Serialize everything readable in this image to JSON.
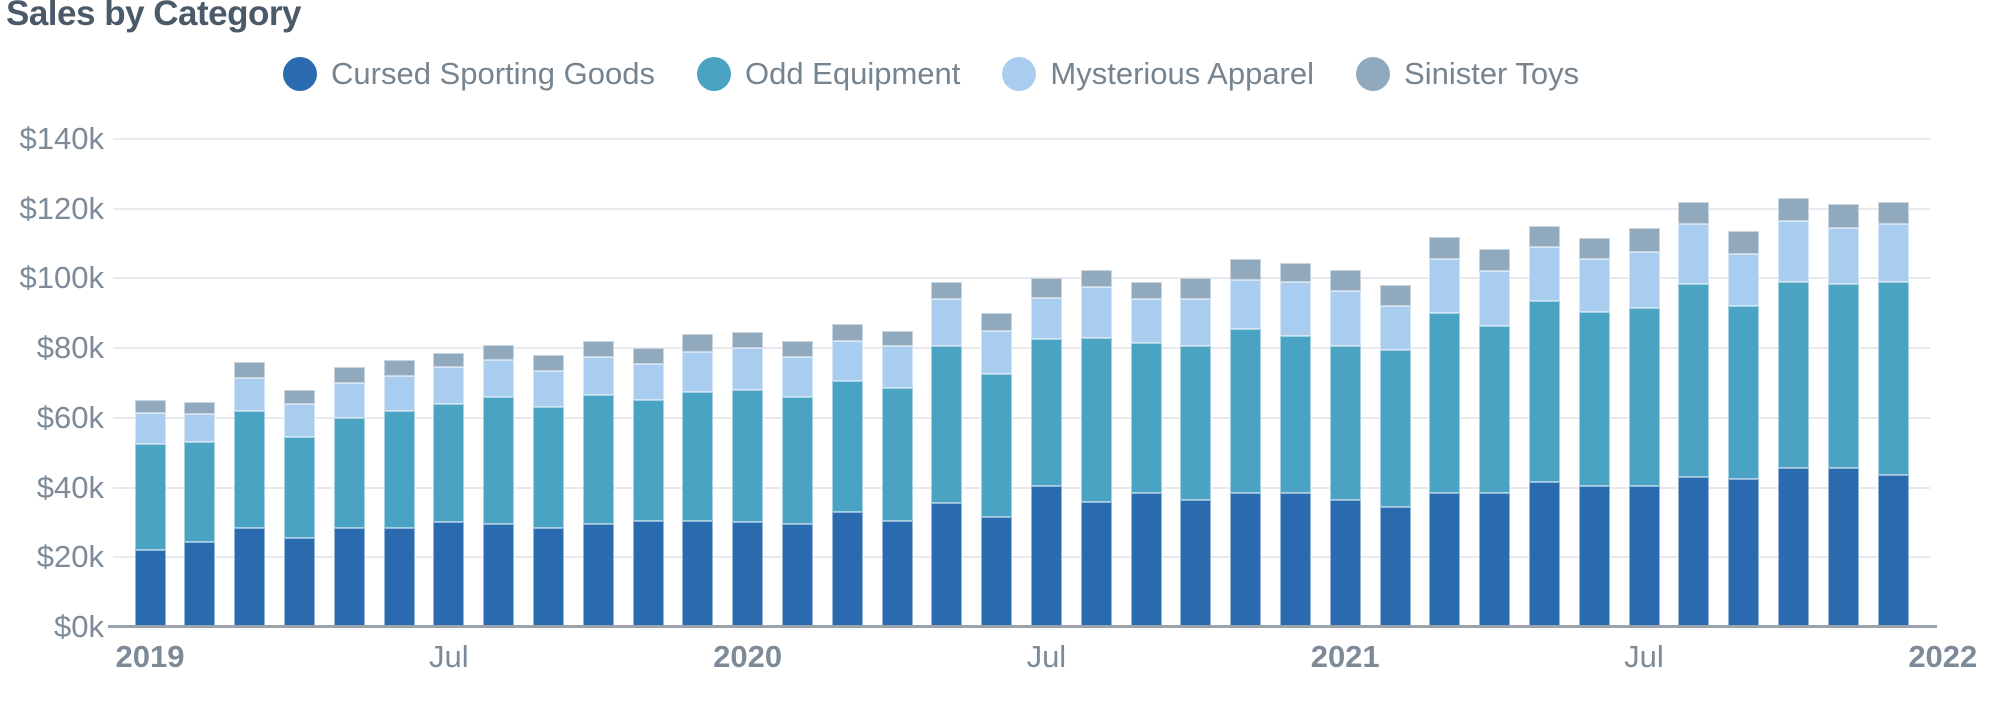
{
  "title": "Sales by Category",
  "colors": {
    "cursed_sporting_goods": "#2a6aae",
    "odd_equipment": "#4ba3c3",
    "mysterious_apparel": "#a8cdee",
    "sinister_toys": "#91a9bc",
    "title_text": "#4b5a69",
    "axis_text": "#7d8b99",
    "legend_text": "#76848f",
    "gridline": "#e9e9ee",
    "axis_line": "#9ba3ac"
  },
  "chart_data": {
    "type": "bar",
    "stacked": true,
    "title": "Sales by Category",
    "units": "USD thousands ($k)",
    "ylim": [
      0,
      140
    ],
    "grid": true,
    "legend_position": "top",
    "categories": [
      "Jan 2019",
      "Feb 2019",
      "Mar 2019",
      "Apr 2019",
      "May 2019",
      "Jun 2019",
      "Jul 2019",
      "Aug 2019",
      "Sep 2019",
      "Oct 2019",
      "Nov 2019",
      "Dec 2019",
      "Jan 2020",
      "Feb 2020",
      "Mar 2020",
      "Apr 2020",
      "May 2020",
      "Jun 2020",
      "Jul 2020",
      "Aug 2020",
      "Sep 2020",
      "Oct 2020",
      "Nov 2020",
      "Dec 2020",
      "Jan 2021",
      "Feb 2021",
      "Mar 2021",
      "Apr 2021",
      "May 2021",
      "Jun 2021",
      "Jul 2021",
      "Aug 2021",
      "Sep 2021",
      "Oct 2021",
      "Nov 2021",
      "Dec 2021"
    ],
    "series": [
      {
        "name": "Cursed Sporting Goods",
        "color": "#2a6aae",
        "values": [
          22,
          24.5,
          28.5,
          25.5,
          28.5,
          28.5,
          30,
          29.5,
          28.5,
          29.5,
          30.5,
          30.5,
          30,
          29.5,
          33,
          30.5,
          35.5,
          31.5,
          40.5,
          36,
          38.5,
          36.5,
          38.5,
          38.5,
          36.5,
          34.5,
          38.5,
          38.5,
          41.5,
          40.5,
          40.5,
          43,
          42.5,
          45.5,
          45.5,
          43.5
        ]
      },
      {
        "name": "Odd Equipment",
        "color": "#4ba3c3",
        "values": [
          30.5,
          28.5,
          33.5,
          29,
          31.5,
          33.5,
          34,
          36.5,
          34.5,
          37,
          34.5,
          37,
          38,
          36.5,
          37.5,
          38,
          45,
          41,
          42,
          47,
          43,
          44,
          47,
          45,
          44,
          45,
          51.5,
          48,
          52,
          50,
          51,
          55.5,
          49.5,
          53.5,
          53,
          55.5
        ]
      },
      {
        "name": "Mysterious Apparel",
        "color": "#a8cdee",
        "values": [
          9,
          8,
          9.5,
          9.5,
          10,
          10,
          10.5,
          10.5,
          10.5,
          11,
          10.5,
          11.5,
          12,
          11.5,
          11.5,
          12,
          13.5,
          12.5,
          12,
          14.5,
          12.5,
          13.5,
          14,
          15.5,
          16,
          12.5,
          15.5,
          15.5,
          15.5,
          15,
          16,
          17,
          15,
          17.5,
          16,
          16.5
        ]
      },
      {
        "name": "Sinister Toys",
        "color": "#91a9bc",
        "values": [
          3.5,
          3.5,
          4.5,
          4,
          4.5,
          4.5,
          4,
          4.5,
          4.5,
          4.5,
          4.5,
          5,
          4.5,
          4.5,
          5,
          4.5,
          5,
          5,
          5.5,
          5,
          5,
          6,
          6,
          5.5,
          6,
          6,
          6.5,
          6.5,
          6,
          6,
          7,
          6.5,
          6.5,
          6.5,
          7,
          6.5
        ]
      }
    ],
    "y_ticks": [
      {
        "label": "$0k",
        "value": 0
      },
      {
        "label": "$20k",
        "value": 20
      },
      {
        "label": "$40k",
        "value": 40
      },
      {
        "label": "$60k",
        "value": 60
      },
      {
        "label": "$80k",
        "value": 80
      },
      {
        "label": "$100k",
        "value": 100
      },
      {
        "label": "$120k",
        "value": 120
      },
      {
        "label": "$140k",
        "value": 140
      }
    ],
    "x_ticks": [
      {
        "label": "2019",
        "index": 0,
        "bold": true
      },
      {
        "label": "Jul",
        "index": 6,
        "bold": false
      },
      {
        "label": "2020",
        "index": 12,
        "bold": true
      },
      {
        "label": "Jul",
        "index": 18,
        "bold": false
      },
      {
        "label": "2021",
        "index": 24,
        "bold": true
      },
      {
        "label": "Jul",
        "index": 30,
        "bold": false
      },
      {
        "label": "2022",
        "index": 36,
        "bold": true
      }
    ]
  }
}
